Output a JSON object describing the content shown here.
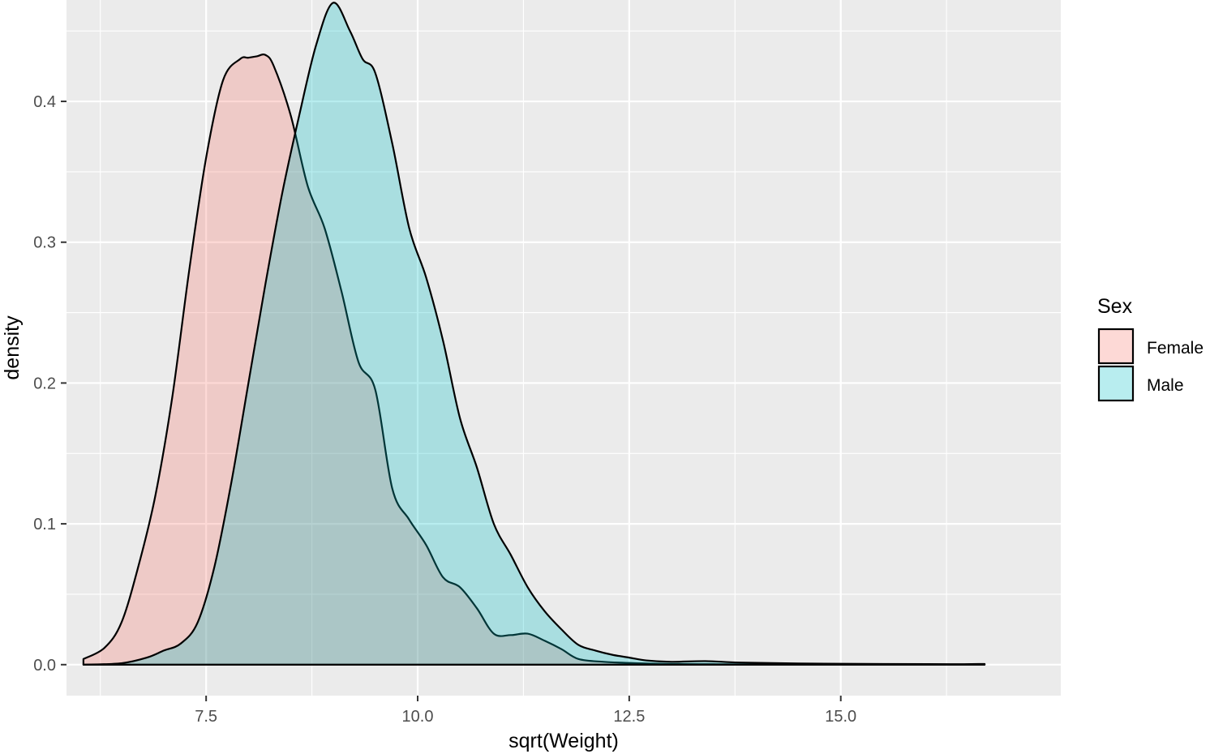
{
  "chart_data": {
    "type": "area",
    "subtype": "density",
    "title": "",
    "xlabel": "sqrt(Weight)",
    "ylabel": "density",
    "xlim": [
      5.85,
      17.6
    ],
    "ylim": [
      -0.022,
      0.472
    ],
    "x_ticks": [
      7.5,
      10.0,
      12.5,
      15.0
    ],
    "x_tick_labels": [
      "7.5",
      "10.0",
      "12.5",
      "15.0"
    ],
    "y_ticks": [
      0.0,
      0.1,
      0.2,
      0.3,
      0.4
    ],
    "y_tick_labels": [
      "0.0",
      "0.1",
      "0.2",
      "0.3",
      "0.4"
    ],
    "grid": true,
    "legend": {
      "title": "Sex",
      "position": "right"
    },
    "series": [
      {
        "name": "Female",
        "fill": "#F8766D",
        "points": [
          [
            6.05,
            0.004
          ],
          [
            6.3,
            0.012
          ],
          [
            6.5,
            0.03
          ],
          [
            6.7,
            0.07
          ],
          [
            6.9,
            0.12
          ],
          [
            7.1,
            0.19
          ],
          [
            7.3,
            0.28
          ],
          [
            7.5,
            0.36
          ],
          [
            7.7,
            0.415
          ],
          [
            7.9,
            0.43
          ],
          [
            8.0,
            0.431
          ],
          [
            8.1,
            0.432
          ],
          [
            8.2,
            0.433
          ],
          [
            8.3,
            0.425
          ],
          [
            8.5,
            0.39
          ],
          [
            8.7,
            0.34
          ],
          [
            8.9,
            0.31
          ],
          [
            9.1,
            0.265
          ],
          [
            9.3,
            0.215
          ],
          [
            9.5,
            0.195
          ],
          [
            9.7,
            0.125
          ],
          [
            9.9,
            0.103
          ],
          [
            10.1,
            0.085
          ],
          [
            10.3,
            0.062
          ],
          [
            10.5,
            0.055
          ],
          [
            10.7,
            0.04
          ],
          [
            10.9,
            0.022
          ],
          [
            11.1,
            0.021
          ],
          [
            11.3,
            0.022
          ],
          [
            11.5,
            0.017
          ],
          [
            11.7,
            0.011
          ],
          [
            11.9,
            0.004
          ],
          [
            12.2,
            0.002
          ],
          [
            12.6,
            0.001
          ],
          [
            13.0,
            0.0005
          ],
          [
            13.5,
            0.0003
          ],
          [
            14.0,
            0.0002
          ],
          [
            15.0,
            0.0001
          ],
          [
            16.0,
            0.0001
          ],
          [
            16.7,
            0.0
          ]
        ]
      },
      {
        "name": "Male",
        "fill": "#00BFC4",
        "points": [
          [
            6.05,
            0.0
          ],
          [
            6.5,
            0.001
          ],
          [
            6.8,
            0.005
          ],
          [
            7.0,
            0.01
          ],
          [
            7.2,
            0.015
          ],
          [
            7.4,
            0.03
          ],
          [
            7.6,
            0.07
          ],
          [
            7.8,
            0.13
          ],
          [
            8.0,
            0.2
          ],
          [
            8.2,
            0.27
          ],
          [
            8.4,
            0.335
          ],
          [
            8.6,
            0.39
          ],
          [
            8.8,
            0.44
          ],
          [
            9.0,
            0.47
          ],
          [
            9.2,
            0.45
          ],
          [
            9.35,
            0.43
          ],
          [
            9.5,
            0.42
          ],
          [
            9.7,
            0.37
          ],
          [
            9.9,
            0.31
          ],
          [
            10.1,
            0.275
          ],
          [
            10.3,
            0.23
          ],
          [
            10.5,
            0.175
          ],
          [
            10.7,
            0.14
          ],
          [
            10.9,
            0.1
          ],
          [
            11.1,
            0.078
          ],
          [
            11.3,
            0.055
          ],
          [
            11.5,
            0.038
          ],
          [
            11.7,
            0.025
          ],
          [
            11.9,
            0.014
          ],
          [
            12.1,
            0.01
          ],
          [
            12.3,
            0.007
          ],
          [
            12.5,
            0.005
          ],
          [
            12.7,
            0.003
          ],
          [
            13.0,
            0.002
          ],
          [
            13.4,
            0.0025
          ],
          [
            13.8,
            0.0015
          ],
          [
            14.5,
            0.0008
          ],
          [
            15.5,
            0.0005
          ],
          [
            16.3,
            0.0003
          ],
          [
            16.7,
            0.0005
          ]
        ]
      }
    ]
  }
}
